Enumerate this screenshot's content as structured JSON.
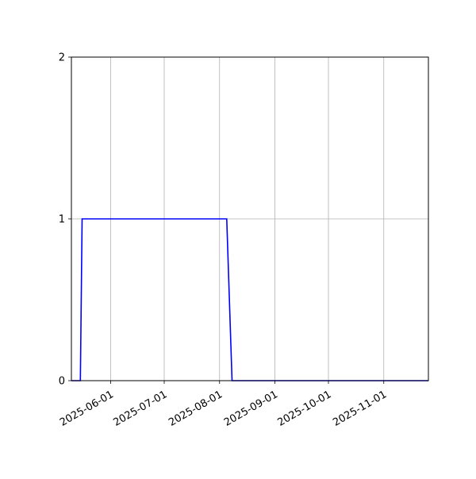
{
  "chart_data": {
    "type": "line",
    "title": "",
    "xlabel": "",
    "ylabel": "",
    "x_type": "date",
    "xlim": [
      "2025-05-10",
      "2025-11-26"
    ],
    "ylim": [
      0,
      2
    ],
    "grid": true,
    "x_ticks": [
      "2025-06-01",
      "2025-07-01",
      "2025-08-01",
      "2025-09-01",
      "2025-10-01",
      "2025-11-01"
    ],
    "y_ticks": [
      0,
      1,
      2
    ],
    "series": [
      {
        "color": "#0000ff",
        "x": [
          "2025-05-10",
          "2025-05-15",
          "2025-05-16",
          "2025-08-05",
          "2025-08-08",
          "2025-11-26"
        ],
        "y": [
          0,
          0,
          1,
          1,
          0,
          0
        ]
      }
    ]
  }
}
